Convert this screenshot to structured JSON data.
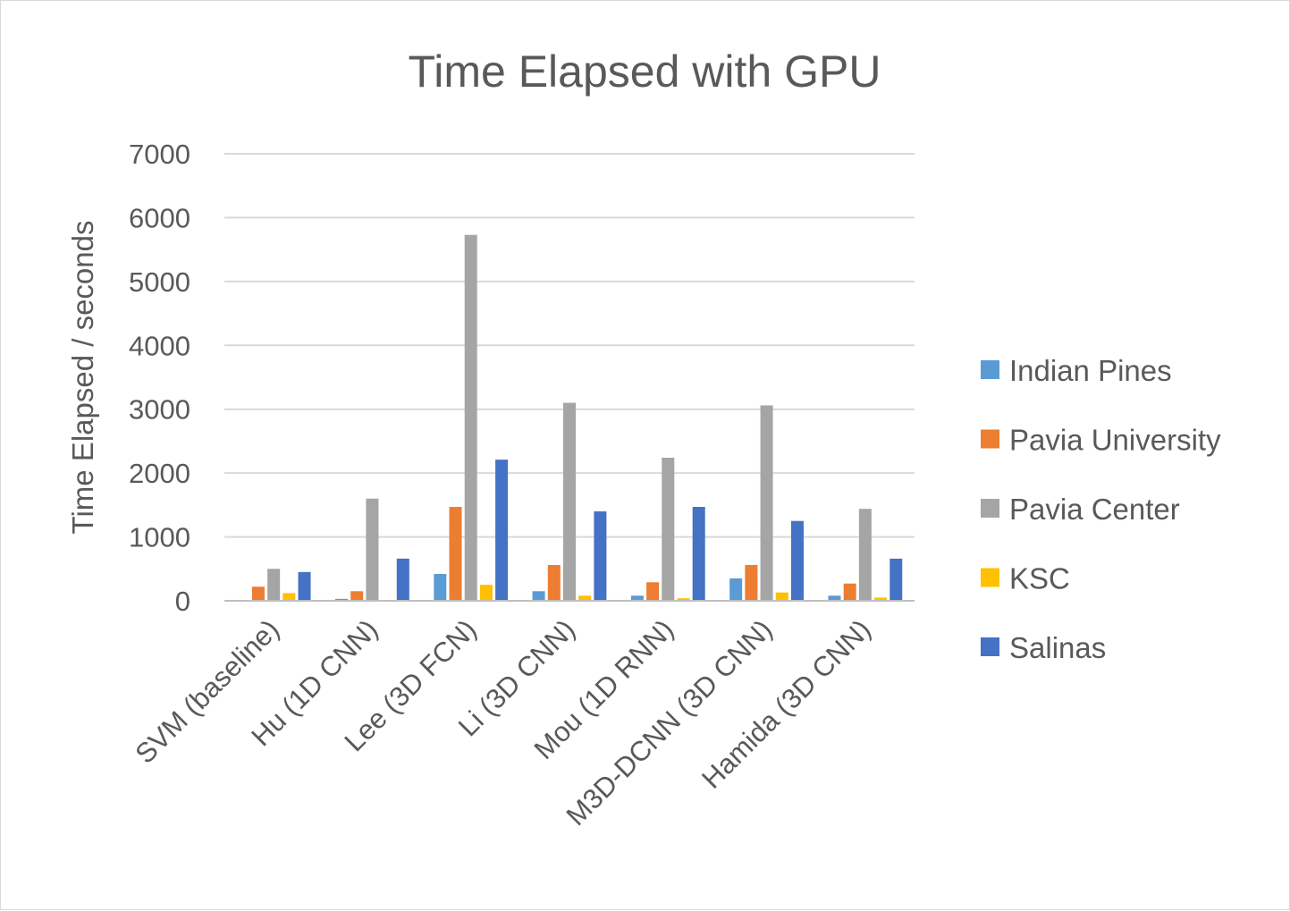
{
  "chart_data": {
    "type": "bar",
    "title": "Time Elapsed with GPU",
    "xlabel": "",
    "ylabel": "Time Elapsed / seconds",
    "ylim": [
      0,
      7000
    ],
    "yticks": [
      0,
      1000,
      2000,
      3000,
      4000,
      5000,
      6000,
      7000
    ],
    "grid": true,
    "legend_position": "right",
    "categories": [
      "SVM (baseline)",
      "Hu (1D CNN)",
      "Lee (3D FCN)",
      "Li (3D CNN)",
      "Mou (1D RNN)",
      "M3D-DCNN (3D CNN)",
      "Hamida (3D CNN)"
    ],
    "series": [
      {
        "name": "Indian Pines",
        "color": "#5b9bd5",
        "values": [
          0,
          30,
          420,
          150,
          80,
          350,
          80
        ]
      },
      {
        "name": "Pavia University",
        "color": "#ed7d31",
        "values": [
          220,
          150,
          1470,
          560,
          290,
          560,
          270
        ]
      },
      {
        "name": "Pavia Center",
        "color": "#a5a5a5",
        "values": [
          500,
          1600,
          5730,
          3100,
          2240,
          3060,
          1440
        ]
      },
      {
        "name": "KSC",
        "color": "#ffc000",
        "values": [
          120,
          0,
          250,
          80,
          40,
          130,
          50
        ]
      },
      {
        "name": "Salinas",
        "color": "#4472c4",
        "values": [
          450,
          660,
          2210,
          1400,
          1470,
          1250,
          660
        ]
      }
    ]
  }
}
